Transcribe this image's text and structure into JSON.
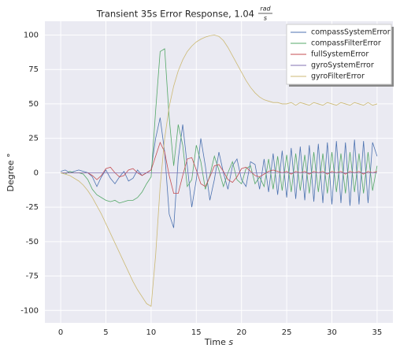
{
  "chart_data": {
    "type": "line",
    "title": "Transient 35s Error Response, 1.04",
    "title_unit_numerator": "rad",
    "title_unit_denominator": "s",
    "xlabel": "Time",
    "xlabel_unit": "s",
    "ylabel": "Degree °",
    "x": [
      0,
      0.5,
      1,
      1.5,
      2,
      2.5,
      3,
      3.5,
      4,
      4.5,
      5,
      5.5,
      6,
      6.5,
      7,
      7.5,
      8,
      8.5,
      9,
      9.5,
      10,
      10.5,
      11,
      11.5,
      12,
      12.5,
      13,
      13.5,
      14,
      14.5,
      15,
      15.5,
      16,
      16.5,
      17,
      17.5,
      18,
      18.5,
      19,
      19.5,
      20,
      20.5,
      21,
      21.5,
      22,
      22.5,
      23,
      23.5,
      24,
      24.5,
      25,
      25.5,
      26,
      26.5,
      27,
      27.5,
      28,
      28.5,
      29,
      29.5,
      30,
      30.5,
      31,
      31.5,
      32,
      32.5,
      33,
      33.5,
      34,
      34.5,
      35
    ],
    "series": [
      {
        "name": "compassSystemError",
        "color": "#4c72b0",
        "values": [
          1,
          2,
          0,
          1,
          2,
          1,
          0,
          -3,
          -10,
          -3,
          2,
          -4,
          -8,
          -3,
          1,
          -6,
          -4,
          2,
          -2,
          0,
          2,
          25,
          40,
          15,
          -30,
          -40,
          10,
          35,
          5,
          -25,
          -5,
          25,
          5,
          -20,
          -5,
          15,
          0,
          -12,
          5,
          10,
          -5,
          -10,
          8,
          6,
          -12,
          10,
          -14,
          14,
          -16,
          16,
          -18,
          18,
          -19,
          19,
          -20,
          20,
          -21,
          21,
          -22,
          22,
          -23,
          23,
          -22,
          22,
          -24,
          24,
          -23,
          23,
          -22,
          22,
          12
        ]
      },
      {
        "name": "compassFilterError",
        "color": "#55a868",
        "values": [
          0,
          -1,
          1,
          0,
          0,
          -1,
          -5,
          -12,
          -16,
          -18,
          -20,
          -21,
          -20,
          -22,
          -21,
          -20,
          -20,
          -18,
          -14,
          -8,
          -3,
          45,
          88,
          90,
          40,
          5,
          35,
          20,
          -10,
          -5,
          20,
          8,
          -12,
          -2,
          12,
          2,
          -10,
          0,
          8,
          -5,
          -8,
          3,
          5,
          -8,
          -3,
          -10,
          10,
          -12,
          12,
          -13,
          13,
          -14,
          14,
          -13,
          13,
          -15,
          15,
          -14,
          14,
          -15,
          15,
          -14,
          14,
          -15,
          15,
          -14,
          14,
          -15,
          15,
          -13,
          5
        ]
      },
      {
        "name": "fullSystemError",
        "color": "#c44e52",
        "values": [
          0,
          0,
          0,
          0,
          0,
          0,
          0,
          -2,
          -5,
          -2,
          3,
          4,
          0,
          -3,
          -2,
          2,
          3,
          0,
          -2,
          0,
          2,
          12,
          22,
          15,
          -2,
          -15,
          -15,
          -2,
          10,
          11,
          2,
          -8,
          -10,
          -3,
          5,
          6,
          1,
          -5,
          -7,
          -3,
          3,
          4,
          1,
          -2,
          -3,
          -1,
          1,
          2,
          1,
          0,
          1,
          -1,
          1,
          0,
          1,
          -1,
          1,
          0,
          1,
          -1,
          1,
          0,
          1,
          -1,
          1,
          0,
          1,
          -1,
          1,
          0,
          1
        ]
      },
      {
        "name": "gyroSystemError",
        "color": "#8172b2",
        "values": [
          0,
          0,
          0,
          0,
          0,
          0,
          0,
          0,
          0,
          0,
          0,
          0,
          0,
          0,
          0,
          0,
          0,
          0,
          0,
          0,
          0,
          0,
          0,
          0,
          0,
          0,
          0,
          0,
          0,
          0,
          0,
          0,
          0,
          0,
          0,
          0,
          0,
          0,
          0,
          0,
          0,
          0,
          0,
          0,
          0,
          0,
          0,
          0,
          0,
          0,
          0,
          0,
          0,
          0,
          0,
          0,
          0,
          0,
          0,
          0,
          0,
          0,
          0,
          0,
          0,
          0,
          0,
          0,
          0,
          0,
          0
        ]
      },
      {
        "name": "gyroFilterError",
        "color": "#ccb974",
        "values": [
          0,
          -1,
          -2,
          -4,
          -6,
          -9,
          -13,
          -18,
          -24,
          -30,
          -37,
          -44,
          -51,
          -58,
          -65,
          -72,
          -79,
          -85,
          -90,
          -95,
          -97,
          -60,
          -10,
          25,
          48,
          63,
          74,
          82,
          88,
          92,
          95,
          97,
          98.5,
          99.5,
          100,
          99,
          96,
          91,
          85,
          79,
          73,
          67,
          62,
          58,
          55,
          53,
          52,
          51,
          51,
          50,
          50,
          51,
          49,
          51,
          50,
          49,
          51,
          50,
          49,
          51,
          50,
          49,
          51,
          50,
          49,
          51,
          50,
          49,
          51,
          49,
          50
        ]
      }
    ],
    "xlim": [
      -1.75,
      36.75
    ],
    "xticks": [
      0,
      5,
      10,
      15,
      20,
      25,
      30,
      35
    ],
    "ylim": [
      -109,
      110
    ],
    "yticks": [
      -100,
      -75,
      -50,
      -25,
      0,
      25,
      50,
      75,
      100
    ],
    "grid": true,
    "legend": "upper right"
  }
}
